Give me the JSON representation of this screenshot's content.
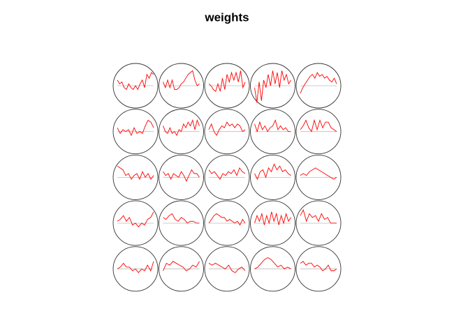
{
  "chart_data": {
    "type": "som-codes",
    "title": "weights",
    "rows": 5,
    "cols": 5,
    "color": "#ff0000",
    "baseline_color": "#bbbbbb",
    "circle_color": "#333333",
    "ylim": [
      -1,
      1
    ],
    "series": [
      {
        "values": [
          0.3,
          0.1,
          0.2,
          -0.1,
          -0.2,
          0.1,
          -0.1,
          -0.2,
          0,
          -0.2,
          0.1,
          0.3,
          -0.1,
          0.6,
          0.4,
          0.7,
          0.6
        ]
      },
      {
        "values": [
          0.2,
          -0.1,
          0.3,
          -0.1,
          0.3,
          -0.2,
          -0.2,
          -0.1,
          0.1,
          0.2,
          0.4,
          0.6,
          0.7,
          0.8,
          0.3,
          0,
          0.1
        ]
      },
      {
        "values": [
          0.1,
          0,
          -0.2,
          -0.3,
          0.1,
          -0.3,
          0.4,
          -0.2,
          0.6,
          0.2,
          0.7,
          0.3,
          0.7,
          0.2,
          0.8,
          -0.1,
          0.2
        ]
      },
      {
        "values": [
          -0.1,
          -0.9,
          0.2,
          -0.8,
          0.3,
          -0.1,
          0.6,
          0,
          0.8,
          0.1,
          0.7,
          -0.1,
          0.8,
          0.3,
          0.6,
          0.1,
          0.3
        ]
      },
      {
        "values": [
          -0.4,
          -0.1,
          0.1,
          0.3,
          0.5,
          0.6,
          0.4,
          0.7,
          0.5,
          0.6,
          0.4,
          0.5,
          0.3,
          0.2,
          0.4,
          0.1
        ]
      },
      {
        "values": [
          0.2,
          -0.1,
          0.1,
          0,
          0.1,
          -0.2,
          0.2,
          -0.1,
          0,
          -0.1,
          0.3,
          0.6,
          0.5,
          0.2
        ]
      },
      {
        "values": [
          0.3,
          0,
          -0.1,
          0.2,
          -0.1,
          0,
          -0.2,
          0.1,
          0,
          0.4,
          0.2,
          0.5,
          0.3,
          0.6,
          0.1,
          0.6,
          0.3
        ]
      },
      {
        "values": [
          0.1,
          0.4,
          0,
          -0.2,
          0.1,
          0.3,
          0.2,
          0.5,
          0.3,
          0.4,
          0.2,
          0.4,
          0.3,
          0,
          0.1
        ]
      },
      {
        "values": [
          0.4,
          0,
          0.5,
          0.1,
          0.3,
          0,
          0.2,
          0.3,
          0.6,
          0.1,
          0.3,
          0.1,
          0.2,
          0,
          0
        ]
      },
      {
        "values": [
          0.1,
          0.3,
          0.6,
          0.2,
          0,
          0.6,
          0.1,
          0.6,
          0.2,
          0.5,
          0.5,
          0.2,
          0.1,
          0
        ]
      },
      {
        "values": [
          0.6,
          0.5,
          0.4,
          0.1,
          0.2,
          -0.1,
          0.1,
          0.2,
          -0.1,
          0.3,
          0,
          0.2,
          -0.1,
          0.1
        ]
      },
      {
        "values": [
          0.3,
          0.1,
          0.2,
          -0.1,
          0.2,
          0.1,
          0,
          0.3,
          0.1,
          -0.2,
          0.1,
          0.4,
          0.2,
          0.2,
          0
        ]
      },
      {
        "values": [
          0.4,
          0.2,
          0.3,
          0.1,
          -0.1,
          0.2,
          0.1,
          0.3,
          0.2,
          0.4,
          0.1,
          0.5,
          0.3,
          0.2
        ]
      },
      {
        "values": [
          0.2,
          -0.1,
          0.3,
          0.4,
          0,
          0.5,
          0.3,
          0.7,
          0.4,
          0.6,
          0.3,
          0.4,
          0.2,
          0.1
        ]
      },
      {
        "values": [
          0.1,
          0.2,
          0.1,
          0.3,
          0.4,
          0.5,
          0.4,
          0.3,
          0.2,
          0.1,
          0,
          -0.1,
          0
        ]
      },
      {
        "values": [
          0.1,
          0.2,
          0.4,
          0.1,
          0.3,
          -0.1,
          0,
          -0.2,
          0,
          -0.1,
          0.2,
          0.3,
          0.6
        ]
      },
      {
        "values": [
          0.3,
          0.2,
          0.4,
          0.5,
          0.2,
          0.1,
          0.3,
          0.2,
          0,
          0.1,
          0.1,
          0,
          0
        ]
      },
      {
        "values": [
          0,
          0.2,
          0.4,
          0.5,
          0.4,
          0.3,
          0.3,
          0.1,
          0.2,
          0.1,
          0,
          0.1,
          -0.1,
          0.2,
          0
        ]
      },
      {
        "values": [
          0,
          0.4,
          0.1,
          0.5,
          -0.1,
          0.4,
          0,
          0.6,
          0.1,
          0.5,
          -0.1,
          0.4,
          0,
          0.5,
          0.1,
          0.3
        ]
      },
      {
        "values": [
          0.4,
          0.7,
          0.1,
          0.5,
          0.3,
          0.4,
          0.1,
          0.5,
          0.2,
          0.3,
          0,
          0,
          0
        ]
      },
      {
        "values": [
          0,
          0.1,
          0.3,
          0.1,
          0.1,
          -0.1,
          0,
          -0.2,
          0,
          -0.1,
          0.2,
          -0.1,
          0.4
        ]
      },
      {
        "values": [
          -0.1,
          0.3,
          0.2,
          0.4,
          0.3,
          0.2,
          0.1,
          -0.1,
          0,
          0.2,
          0.1,
          0.4
        ]
      },
      {
        "values": [
          0.3,
          0.2,
          0.3,
          0.2,
          0.1,
          0,
          0.2,
          -0.1,
          -0.2,
          0,
          0.1,
          -0.1
        ]
      },
      {
        "values": [
          0,
          0.1,
          0.3,
          0.5,
          0.6,
          0.5,
          0.3,
          0.1,
          0.2,
          0,
          0.1,
          0
        ]
      },
      {
        "values": [
          0.3,
          0.4,
          0.2,
          0.3,
          0.3,
          0.1,
          0.2,
          0.1,
          -0.1,
          0,
          0.2,
          -0.1,
          -0.1,
          0
        ]
      }
    ]
  }
}
